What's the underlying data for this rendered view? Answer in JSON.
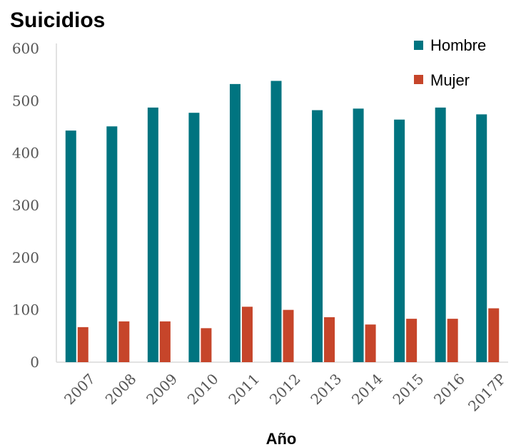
{
  "chart_data": {
    "type": "bar",
    "title": "Suicidios",
    "xlabel": "Año",
    "ylabel": "",
    "ylim": [
      0,
      600
    ],
    "yticks": [
      "0",
      "100",
      "200",
      "300",
      "400",
      "500",
      "600"
    ],
    "categories": [
      "2007",
      "2008",
      "2009",
      "2010",
      "2011",
      "2012",
      "2013",
      "2014",
      "2015",
      "2016",
      "2017P"
    ],
    "series": [
      {
        "name": "Hombre",
        "color": "#007480",
        "values": [
          443,
          451,
          487,
          477,
          532,
          538,
          482,
          485,
          464,
          487,
          474
        ]
      },
      {
        "name": "Mujer",
        "color": "#C6452A",
        "values": [
          67,
          78,
          78,
          65,
          106,
          100,
          86,
          72,
          83,
          83,
          103
        ]
      }
    ],
    "legend_position": "top-right",
    "grid": false
  }
}
